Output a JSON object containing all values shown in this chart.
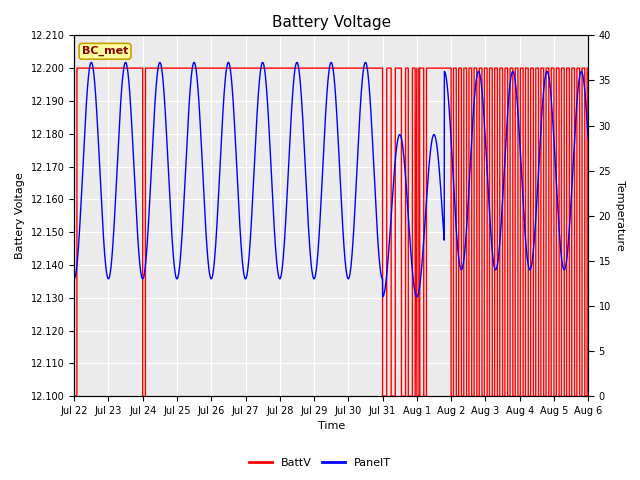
{
  "title": "Battery Voltage",
  "xlabel": "Time",
  "ylabel_left": "Battery Voltage",
  "ylabel_right": "Temperature",
  "ylim_left": [
    12.1,
    12.21
  ],
  "ylim_right": [
    0,
    40
  ],
  "yticks_left": [
    12.1,
    12.11,
    12.12,
    12.13,
    12.14,
    12.15,
    12.16,
    12.17,
    12.18,
    12.19,
    12.2,
    12.21
  ],
  "yticks_right": [
    0,
    5,
    10,
    15,
    20,
    25,
    30,
    35,
    40
  ],
  "xtick_labels": [
    "Jul 22",
    "Jul 23",
    "Jul 24",
    "Jul 25",
    "Jul 26",
    "Jul 27",
    "Jul 28",
    "Jul 29",
    "Jul 30",
    "Jul 31",
    "Aug 1",
    "Aug 2",
    "Aug 3",
    "Aug 4",
    "Aug 5",
    "Aug 6"
  ],
  "xrange": [
    0,
    15
  ],
  "background_color": "#ffffff",
  "plot_bg_color": "#e0e0e0",
  "inner_bg_color": "#ebebeb",
  "grid_color": "#ffffff",
  "red_color": "#ff0000",
  "blue_color": "#0000ff",
  "annotation_text": "BC_met",
  "annotation_bg": "#ffffa0",
  "annotation_border": "#c8a000",
  "legend_labels": [
    "BattV",
    "PanelT"
  ]
}
